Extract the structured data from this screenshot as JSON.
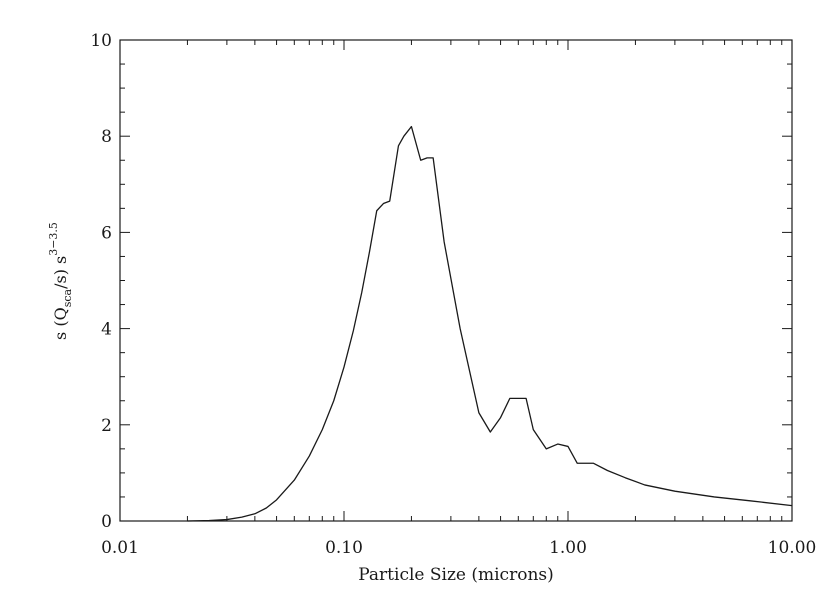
{
  "chart_data": {
    "type": "line",
    "xscale": "log",
    "xlim": [
      0.01,
      10.0
    ],
    "ylim": [
      0,
      10
    ],
    "xlabel": "Particle Size (microns)",
    "ylabel": {
      "prefix": "s (Q",
      "subscript": "sca",
      "middle": "/s) s",
      "superscript": "3−3.5"
    },
    "x_ticks": [
      0.01,
      0.1,
      1.0,
      10.0
    ],
    "x_tick_labels": [
      "0.01",
      "0.10",
      "1.00",
      "10.00"
    ],
    "y_ticks": [
      0,
      2,
      4,
      6,
      8,
      10
    ],
    "y_tick_labels": [
      "0",
      "2",
      "4",
      "6",
      "8",
      "10"
    ],
    "grid": false,
    "series": [
      {
        "x": [
          0.02,
          0.025,
          0.03,
          0.035,
          0.04,
          0.045,
          0.05,
          0.06,
          0.07,
          0.08,
          0.09,
          0.1,
          0.11,
          0.12,
          0.13,
          0.14,
          0.15,
          0.16,
          0.175,
          0.185,
          0.2,
          0.22,
          0.235,
          0.25,
          0.28,
          0.33,
          0.4,
          0.45,
          0.5,
          0.55,
          0.6,
          0.65,
          0.7,
          0.8,
          0.9,
          1.0,
          1.1,
          1.3,
          1.5,
          1.8,
          2.2,
          3.0,
          4.5,
          6.5,
          10.0
        ],
        "y": [
          0.0,
          0.01,
          0.03,
          0.08,
          0.15,
          0.27,
          0.44,
          0.85,
          1.35,
          1.9,
          2.5,
          3.2,
          3.95,
          4.75,
          5.6,
          6.45,
          6.6,
          6.65,
          7.8,
          8.0,
          8.2,
          7.5,
          7.55,
          7.55,
          5.8,
          4.0,
          2.25,
          1.85,
          2.15,
          2.55,
          2.55,
          2.55,
          1.9,
          1.5,
          1.6,
          1.55,
          1.2,
          1.2,
          1.05,
          0.9,
          0.75,
          0.62,
          0.5,
          0.42,
          0.32
        ]
      }
    ]
  }
}
